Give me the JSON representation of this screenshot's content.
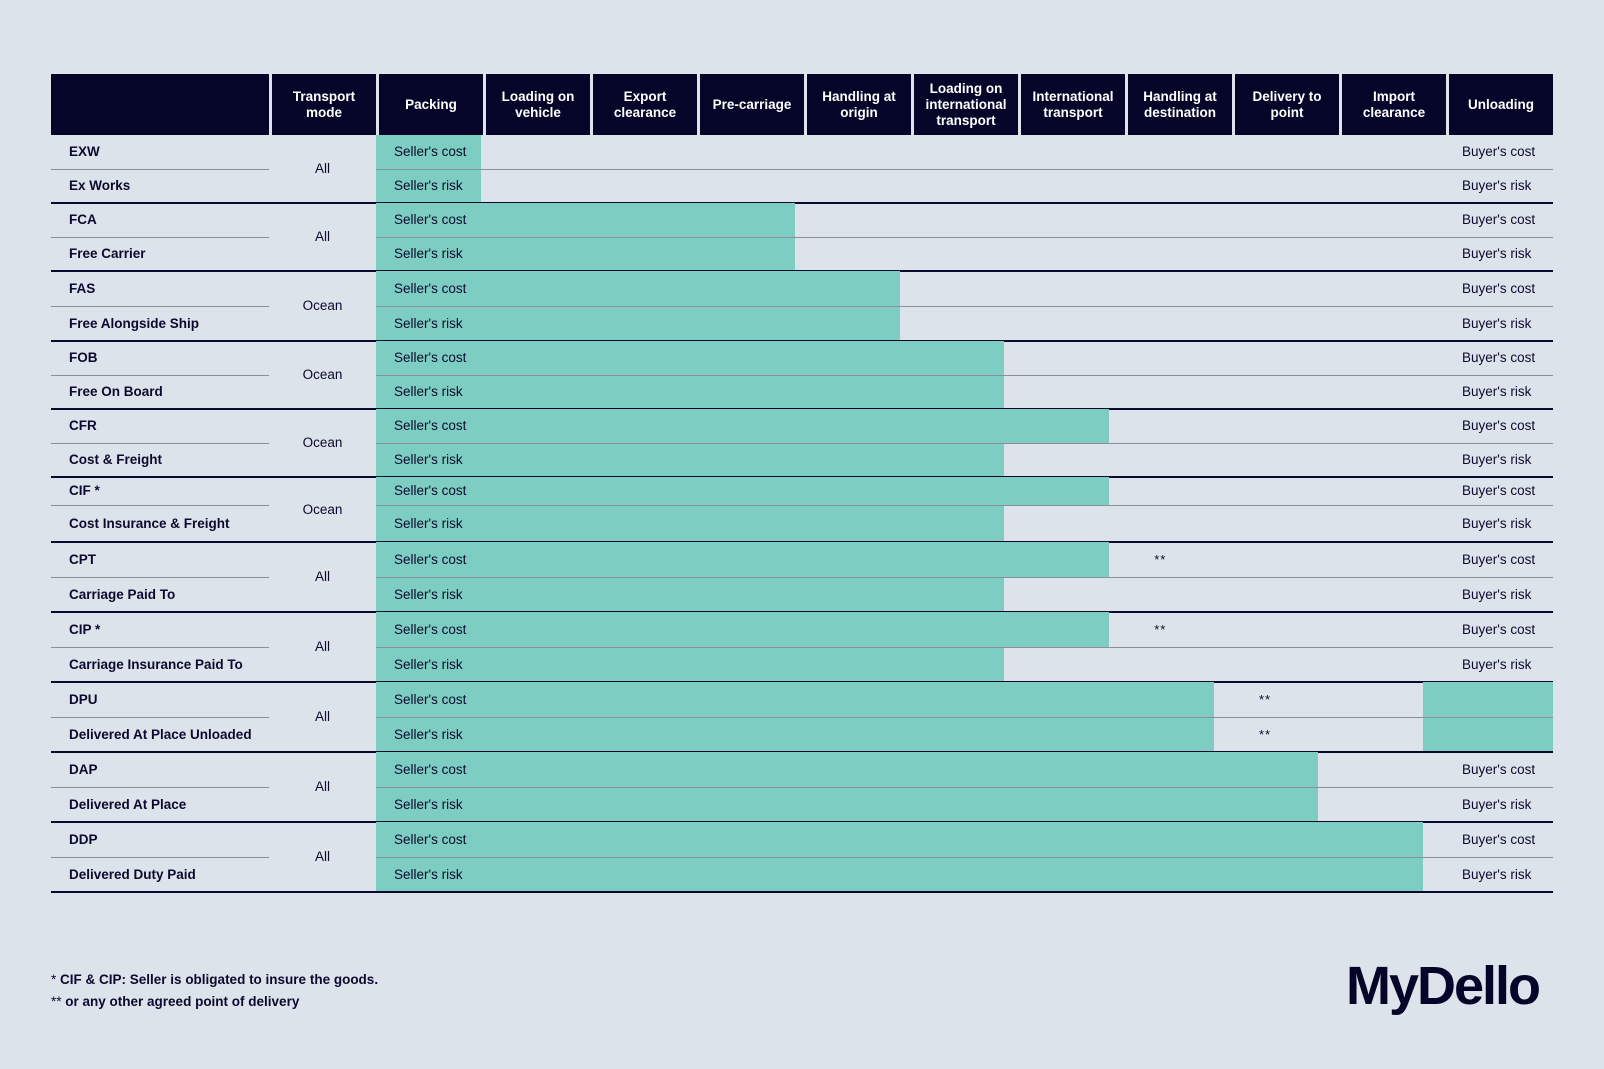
{
  "header": {
    "columns": [
      "",
      "Transport mode",
      "Packing",
      "Loading on vehicle",
      "Export clearance",
      "Pre-carriage",
      "Handling at origin",
      "Loading on international transport",
      "International transport",
      "Handling at destination",
      "Delivery to point",
      "Import clearance",
      "Unloading"
    ]
  },
  "labels": {
    "seller_cost": "Seller's cost",
    "seller_risk": "Seller's risk",
    "buyer_cost": "Buyer's cost",
    "buyer_risk": "Buyer's risk",
    "double_star": "**"
  },
  "terms": [
    {
      "code": "EXW",
      "name": "Ex Works",
      "mode": "All",
      "cost_cols": 1,
      "risk_cols": 1
    },
    {
      "code": "FCA",
      "name": "Free Carrier",
      "mode": "All",
      "cost_cols": 4,
      "risk_cols": 4
    },
    {
      "code": "FAS",
      "name": "Free Alongside Ship",
      "mode": "Ocean",
      "cost_cols": 5,
      "risk_cols": 5
    },
    {
      "code": "FOB",
      "name": "Free On Board",
      "mode": "Ocean",
      "cost_cols": 6,
      "risk_cols": 6
    },
    {
      "code": "CFR",
      "name": "Cost & Freight",
      "mode": "Ocean",
      "cost_cols": 7,
      "risk_cols": 6
    },
    {
      "code": "CIF *",
      "name": "Cost Insurance & Freight",
      "mode": "Ocean",
      "cost_cols": 7,
      "risk_cols": 6
    },
    {
      "code": "CPT",
      "name": "Carriage Paid To",
      "mode": "All",
      "cost_cols": 7,
      "risk_cols": 6,
      "cost_star_col": 7
    },
    {
      "code": "CIP *",
      "name": "Carriage Insurance Paid To",
      "mode": "All",
      "cost_cols": 7,
      "risk_cols": 6,
      "cost_star_col": 7
    },
    {
      "code": "DPU",
      "name": "Delivered At Place Unloaded",
      "mode": "All",
      "cost_cols": 8,
      "risk_cols": 8,
      "cost_star_col": 8,
      "risk_star_col": 8,
      "unloading_seller": true
    },
    {
      "code": "DAP",
      "name": "Delivered At Place",
      "mode": "All",
      "cost_cols": 9,
      "risk_cols": 9
    },
    {
      "code": "DDP",
      "name": "Delivered Duty Paid",
      "mode": "All",
      "cost_cols": 10,
      "risk_cols": 10
    }
  ],
  "footnotes": {
    "note1_mark": "*",
    "note1": "CIF & CIP: Seller is obligated to insure the goods.",
    "note2_mark": "**",
    "note2": "or any other agreed point of delivery"
  },
  "logo": {
    "text": "MyDello"
  },
  "colors": {
    "header_bg": "#05052a",
    "seller_fill": "#7ecdc2",
    "page_bg": "#dde3ea",
    "text": "#0a0a2e"
  }
}
